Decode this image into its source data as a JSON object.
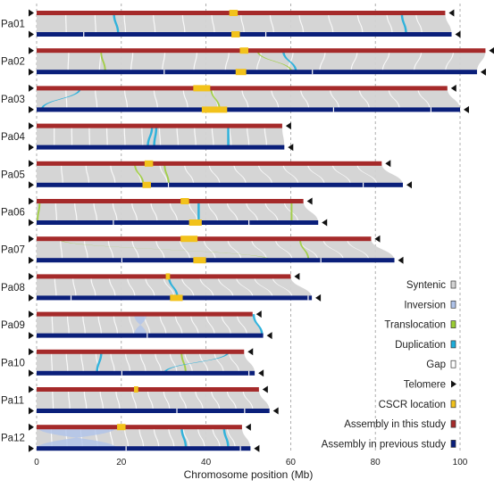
{
  "chart_data": {
    "type": "synteny",
    "xlabel": "Chromosome position (Mb)",
    "xlim": [
      0,
      105
    ],
    "xticks": [
      0,
      20,
      40,
      60,
      80,
      100
    ],
    "grid": "vertical dashed",
    "legend_position": "bottom-right",
    "colors": {
      "current": "#A52A2A",
      "previous": "#0A1F7A",
      "syntenic": "#D3D3D3",
      "inversion": "#AFC3EA",
      "translocation": "#9ACD32",
      "duplication": "#1EAEDB",
      "gap": "#FFFFFF",
      "telomere": "#111111",
      "cscr": "#F2C21B"
    },
    "legend": [
      {
        "key": "syntenic",
        "label": "Syntenic"
      },
      {
        "key": "inversion",
        "label": "Inversion"
      },
      {
        "key": "translocation",
        "label": "Translocation"
      },
      {
        "key": "duplication",
        "label": "Duplication"
      },
      {
        "key": "gap",
        "label": "Gap"
      },
      {
        "key": "telomere",
        "label": "Telomere"
      },
      {
        "key": "cscr",
        "label": "CSCR location"
      },
      {
        "key": "current",
        "label": "Assembly in this study"
      },
      {
        "key": "previous",
        "label": "Assembly in previous study"
      }
    ],
    "chromosomes": [
      {
        "name": "Pa01",
        "current_len": 96.5,
        "previous_len": 98.0,
        "cscr_current": [
          45.5,
          47.5
        ],
        "cscr_previous": [
          46,
          48
        ],
        "dup": [
          [
            18,
            19
          ],
          [
            86,
            87
          ]
        ],
        "trans": [],
        "inv": [],
        "gaps_current": [],
        "gaps_previous": [
          11,
          54
        ]
      },
      {
        "name": "Pa02",
        "current_len": 106.0,
        "previous_len": 104.0,
        "cscr_current": [
          48,
          50
        ],
        "cscr_previous": [
          47,
          49.5
        ],
        "dup": [
          [
            58,
            61
          ]
        ],
        "trans": [
          [
            15,
            16
          ],
          [
            52,
            60
          ]
        ],
        "inv": [],
        "gaps_current": [],
        "gaps_previous": [
          30,
          65
        ]
      },
      {
        "name": "Pa03",
        "current_len": 97.0,
        "previous_len": 100.0,
        "cscr_current": [
          37,
          41
        ],
        "cscr_previous": [
          39,
          45
        ],
        "dup": [
          [
            10,
            1
          ]
        ],
        "trans": [
          [
            41,
            43
          ]
        ],
        "inv": [],
        "gaps_current": [],
        "gaps_previous": [
          70,
          93
        ]
      },
      {
        "name": "Pa04",
        "current_len": 58.0,
        "previous_len": 58.5,
        "cscr_current": [],
        "cscr_previous": [],
        "dup": [
          [
            27,
            26
          ],
          [
            28,
            27.5
          ],
          [
            45,
            45
          ]
        ],
        "trans": [],
        "inv": [],
        "gaps_current": [],
        "gaps_previous": []
      },
      {
        "name": "Pa05",
        "current_len": 81.5,
        "previous_len": 86.5,
        "cscr_current": [
          25.5,
          27.5
        ],
        "cscr_previous": [
          25,
          27
        ],
        "dup": [],
        "trans": [
          [
            23,
            25
          ],
          [
            30,
            31
          ]
        ],
        "inv": [],
        "gaps_current": [],
        "gaps_previous": [
          31,
          77
        ]
      },
      {
        "name": "Pa06",
        "current_len": 63.0,
        "previous_len": 66.5,
        "cscr_current": [
          34,
          36
        ],
        "cscr_previous": [
          36,
          39
        ],
        "dup": [
          [
            38,
            38
          ]
        ],
        "trans": [
          [
            0.5,
            0
          ],
          [
            60,
            60
          ]
        ],
        "inv": [],
        "gaps_current": [],
        "gaps_previous": [
          18,
          50
        ]
      },
      {
        "name": "Pa07",
        "current_len": 79.0,
        "previous_len": 84.5,
        "cscr_current": [
          34,
          38
        ],
        "cscr_previous": [
          37,
          40
        ],
        "dup": [],
        "trans": [
          [
            5,
            55
          ],
          [
            62,
            64
          ]
        ],
        "inv": [],
        "gaps_current": [],
        "gaps_previous": [
          20,
          67
        ]
      },
      {
        "name": "Pa08",
        "current_len": 60.0,
        "previous_len": 65.0,
        "cscr_current": [
          30.5,
          31.5
        ],
        "cscr_previous": [
          31.5,
          34.5
        ],
        "dup": [
          [
            31,
            33
          ]
        ],
        "trans": [],
        "inv": [],
        "gaps_current": [],
        "gaps_previous": [
          8,
          64
        ]
      },
      {
        "name": "Pa09",
        "current_len": 51.0,
        "previous_len": 53.5,
        "cscr_current": [],
        "cscr_previous": [],
        "dup": [
          [
            51,
            53
          ]
        ],
        "trans": [],
        "inv": [
          [
            23,
            26
          ]
        ],
        "gaps_current": [],
        "gaps_previous": [
          26
        ]
      },
      {
        "name": "Pa10",
        "current_len": 49.0,
        "previous_len": 51.5,
        "cscr_current": [],
        "cscr_previous": [],
        "dup": [
          [
            15,
            14
          ],
          [
            45,
            30
          ]
        ],
        "trans": [
          [
            34,
            35
          ]
        ],
        "inv": [],
        "gaps_current": [],
        "gaps_previous": [
          20,
          50
        ]
      },
      {
        "name": "Pa11",
        "current_len": 52.5,
        "previous_len": 55.0,
        "cscr_current": [
          23,
          24
        ],
        "cscr_previous": [],
        "dup": [],
        "trans": [],
        "inv": [],
        "gaps_current": [],
        "gaps_previous": [
          33,
          49
        ]
      },
      {
        "name": "Pa12",
        "current_len": 48.5,
        "previous_len": 50.5,
        "cscr_current": [
          19,
          21
        ],
        "cscr_previous": [],
        "dup": [
          [
            34,
            35
          ],
          [
            44,
            45
          ]
        ],
        "trans": [],
        "inv": [
          [
            0,
            19
          ]
        ],
        "gaps_current": [],
        "gaps_previous": [
          21,
          48
        ]
      }
    ]
  }
}
